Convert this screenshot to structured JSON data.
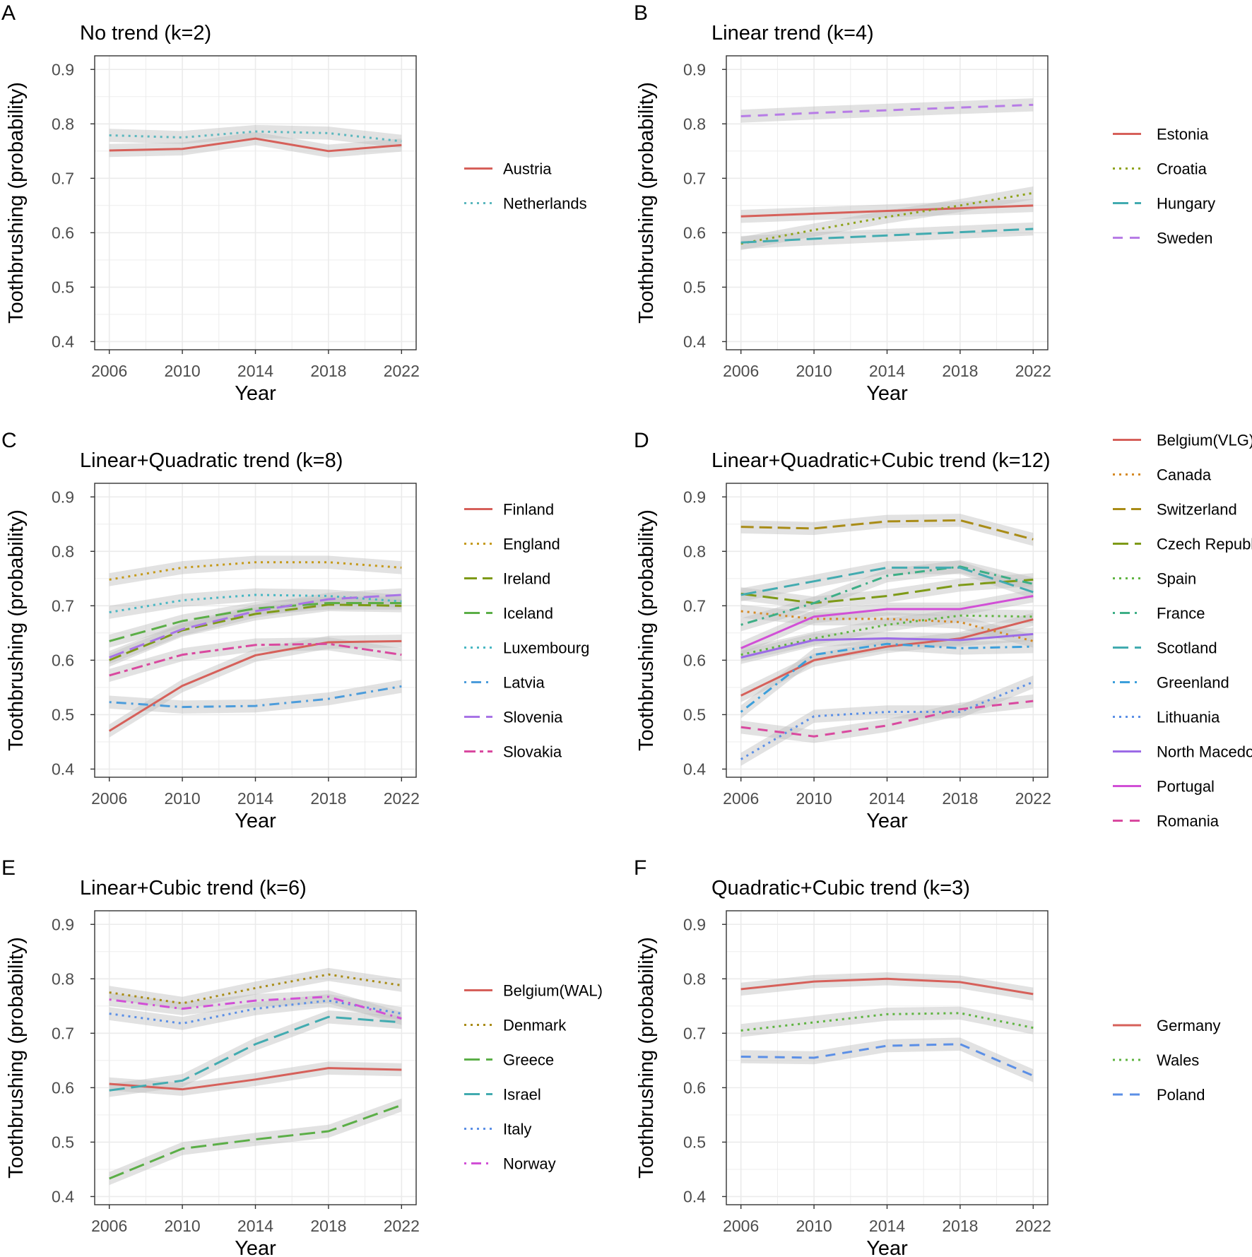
{
  "figure": {
    "shared": {
      "xlabel": "Year",
      "ylabel": "Toothbrushing (probability)",
      "x": [
        2006,
        2010,
        2014,
        2018,
        2022
      ],
      "xticks": [
        "2006",
        "2010",
        "2014",
        "2018",
        "2022"
      ],
      "yticks": [
        "0.4",
        "0.5",
        "0.6",
        "0.7",
        "0.8",
        "0.9"
      ],
      "ylim": [
        0.385,
        0.925
      ],
      "xlim": [
        2005.2,
        2022.8
      ]
    }
  },
  "chart_data": [
    {
      "panel": "A",
      "type": "line",
      "title": "No trend (k=2)",
      "xlabel": "Year",
      "ylabel": "Toothbrushing (probability)",
      "series": [
        {
          "name": "Austria",
          "color": "#D6605A",
          "dash": "solid",
          "values": [
            0.751,
            0.754,
            0.773,
            0.75,
            0.761
          ]
        },
        {
          "name": "Netherlands",
          "color": "#5BB7BE",
          "dash": "dotted",
          "values": [
            0.779,
            0.775,
            0.786,
            0.783,
            0.768
          ]
        }
      ]
    },
    {
      "panel": "B",
      "type": "line",
      "title": "Linear trend (k=4)",
      "xlabel": "Year",
      "ylabel": "Toothbrushing (probability)",
      "series": [
        {
          "name": "Estonia",
          "color": "#D6605A",
          "dash": "solid",
          "values": [
            0.63,
            0.635,
            0.64,
            0.645,
            0.65
          ]
        },
        {
          "name": "Croatia",
          "color": "#8FA31B",
          "dash": "dotted",
          "values": [
            0.58,
            0.605,
            0.629,
            0.65,
            0.673
          ]
        },
        {
          "name": "Hungary",
          "color": "#42ABB0",
          "dash": "longdash",
          "values": [
            0.582,
            0.589,
            0.595,
            0.601,
            0.607
          ]
        },
        {
          "name": "Sweden",
          "color": "#B77CE6",
          "dash": "dashed",
          "values": [
            0.814,
            0.82,
            0.825,
            0.83,
            0.835
          ]
        }
      ]
    },
    {
      "panel": "C",
      "type": "line",
      "title": "Linear+Quadratic trend (k=8)",
      "xlabel": "Year",
      "ylabel": "Toothbrushing (probability)",
      "series": [
        {
          "name": "Finland",
          "color": "#D6605A",
          "dash": "solid",
          "values": [
            0.47,
            0.553,
            0.609,
            0.633,
            0.635
          ]
        },
        {
          "name": "England",
          "color": "#C59A1B",
          "dash": "dotted",
          "values": [
            0.748,
            0.77,
            0.78,
            0.78,
            0.77
          ]
        },
        {
          "name": "Ireland",
          "color": "#7E9A17",
          "dash": "dashlong",
          "values": [
            0.6,
            0.655,
            0.685,
            0.702,
            0.7
          ]
        },
        {
          "name": "Iceland",
          "color": "#5BAE47",
          "dash": "longdash",
          "values": [
            0.635,
            0.672,
            0.695,
            0.705,
            0.705
          ]
        },
        {
          "name": "Luxembourg",
          "color": "#49B7C3",
          "dash": "dotted",
          "values": [
            0.688,
            0.71,
            0.72,
            0.718,
            0.708
          ]
        },
        {
          "name": "Latvia",
          "color": "#4C9CDB",
          "dash": "dotdash",
          "values": [
            0.523,
            0.514,
            0.516,
            0.529,
            0.552
          ]
        },
        {
          "name": "Slovenia",
          "color": "#A874E6",
          "dash": "longdash",
          "values": [
            0.605,
            0.657,
            0.69,
            0.712,
            0.72
          ]
        },
        {
          "name": "Slovakia",
          "color": "#D9499F",
          "dash": "twodash",
          "values": [
            0.572,
            0.61,
            0.628,
            0.63,
            0.61
          ]
        }
      ]
    },
    {
      "panel": "D",
      "type": "line",
      "title": "Linear+Quadratic+Cubic trend (k=12)",
      "xlabel": "Year",
      "ylabel": "Toothbrushing (probability)",
      "series": [
        {
          "name": "Belgium(VLG)",
          "color": "#D6605A",
          "dash": "solid",
          "values": [
            0.535,
            0.6,
            0.625,
            0.64,
            0.675
          ]
        },
        {
          "name": "Canada",
          "color": "#D58A25",
          "dash": "dotted",
          "values": [
            0.69,
            0.676,
            0.676,
            0.67,
            0.635
          ]
        },
        {
          "name": "Switzerland",
          "color": "#A98C17",
          "dash": "dashlong",
          "values": [
            0.845,
            0.842,
            0.855,
            0.857,
            0.822
          ]
        },
        {
          "name": "Czech Republic",
          "color": "#7E9A17",
          "dash": "longdash",
          "values": [
            0.722,
            0.705,
            0.718,
            0.738,
            0.748
          ]
        },
        {
          "name": "Spain",
          "color": "#5FB441",
          "dash": "dotted",
          "values": [
            0.61,
            0.64,
            0.665,
            0.682,
            0.68
          ]
        },
        {
          "name": "France",
          "color": "#3DAE86",
          "dash": "dotdash",
          "values": [
            0.665,
            0.705,
            0.755,
            0.772,
            0.74
          ]
        },
        {
          "name": "Scotland",
          "color": "#42ABB0",
          "dash": "longdash",
          "values": [
            0.72,
            0.745,
            0.77,
            0.77,
            0.725
          ]
        },
        {
          "name": "Greenland",
          "color": "#3C9FDB",
          "dash": "dotdash",
          "values": [
            0.505,
            0.61,
            0.63,
            0.622,
            0.625
          ]
        },
        {
          "name": "Lithuania",
          "color": "#5B8FE6",
          "dash": "dotted",
          "values": [
            0.418,
            0.497,
            0.505,
            0.505,
            0.56
          ]
        },
        {
          "name": "North Macedonia",
          "color": "#9C6BE6",
          "dash": "solid",
          "values": [
            0.605,
            0.637,
            0.64,
            0.637,
            0.648
          ]
        },
        {
          "name": "Portugal",
          "color": "#D14FD6",
          "dash": "solid",
          "values": [
            0.622,
            0.68,
            0.694,
            0.694,
            0.718
          ]
        },
        {
          "name": "Romania",
          "color": "#D9499F",
          "dash": "dashed",
          "values": [
            0.477,
            0.46,
            0.48,
            0.51,
            0.525
          ]
        }
      ]
    },
    {
      "panel": "E",
      "type": "line",
      "title": "Linear+Cubic trend (k=6)",
      "xlabel": "Year",
      "ylabel": "Toothbrushing (probability)",
      "series": [
        {
          "name": "Belgium(WAL)",
          "color": "#D6605A",
          "dash": "solid",
          "values": [
            0.607,
            0.597,
            0.615,
            0.636,
            0.633
          ]
        },
        {
          "name": "Denmark",
          "color": "#A98C17",
          "dash": "dotted",
          "values": [
            0.775,
            0.755,
            0.783,
            0.808,
            0.788
          ]
        },
        {
          "name": "Greece",
          "color": "#5BAE47",
          "dash": "longdash",
          "values": [
            0.433,
            0.488,
            0.505,
            0.52,
            0.568
          ]
        },
        {
          "name": "Israel",
          "color": "#42ABB0",
          "dash": "longdash",
          "values": [
            0.595,
            0.613,
            0.68,
            0.73,
            0.72
          ]
        },
        {
          "name": "Italy",
          "color": "#5B8FE6",
          "dash": "dotted",
          "values": [
            0.736,
            0.718,
            0.745,
            0.76,
            0.736
          ]
        },
        {
          "name": "Norway",
          "color": "#D14FD6",
          "dash": "dotdash",
          "values": [
            0.762,
            0.745,
            0.76,
            0.767,
            0.727
          ]
        }
      ]
    },
    {
      "panel": "F",
      "type": "line",
      "title": "Quadratic+Cubic trend (k=3)",
      "xlabel": "Year",
      "ylabel": "Toothbrushing (probability)",
      "series": [
        {
          "name": "Germany",
          "color": "#D6605A",
          "dash": "solid",
          "values": [
            0.781,
            0.795,
            0.8,
            0.794,
            0.772
          ]
        },
        {
          "name": "Wales",
          "color": "#5FB441",
          "dash": "dotted",
          "values": [
            0.705,
            0.72,
            0.735,
            0.737,
            0.71
          ]
        },
        {
          "name": "Poland",
          "color": "#5B8FE6",
          "dash": "dashed",
          "values": [
            0.657,
            0.655,
            0.677,
            0.68,
            0.622
          ]
        }
      ]
    }
  ]
}
